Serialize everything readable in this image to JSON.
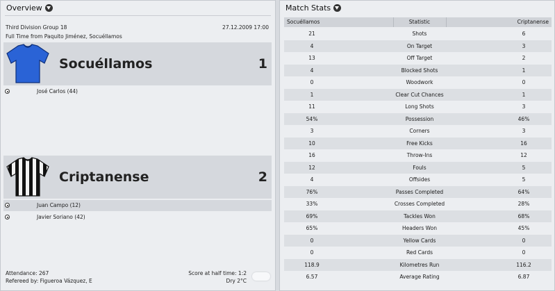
{
  "overview": {
    "title": "Overview",
    "competition": "Third Division Group 18",
    "datetime": "27.12.2009 17:00",
    "result_line": "Full Time from Paquito Jiménez, Socuéllamos",
    "home": {
      "name": "Socuéllamos",
      "score": "1",
      "kit_color": "#2a63d6",
      "scorers": [
        "José Carlos (44)"
      ]
    },
    "away": {
      "name": "Criptanense",
      "score": "2",
      "kit_color": "#111111",
      "scorers": [
        "Juan Campo (12)",
        "Javier Soriano (42)"
      ]
    },
    "attendance": "Attendance: 267",
    "referee": "Refereed by: Figueroa Vázquez, E",
    "halftime": "Score at half time: 1:2",
    "weather": "Dry 2°C"
  },
  "match_stats": {
    "title": "Match Stats",
    "headers": {
      "home": "Socuéllamos",
      "stat": "Statistic",
      "away": "Criptanense"
    },
    "rows": [
      {
        "home": "21",
        "stat": "Shots",
        "away": "6"
      },
      {
        "home": "4",
        "stat": "On Target",
        "away": "3"
      },
      {
        "home": "13",
        "stat": "Off Target",
        "away": "2"
      },
      {
        "home": "4",
        "stat": "Blocked Shots",
        "away": "1"
      },
      {
        "home": "0",
        "stat": "Woodwork",
        "away": "0"
      },
      {
        "home": "1",
        "stat": "Clear Cut Chances",
        "away": "1"
      },
      {
        "home": "11",
        "stat": "Long Shots",
        "away": "3"
      },
      {
        "home": "54%",
        "stat": "Possession",
        "away": "46%"
      },
      {
        "home": "3",
        "stat": "Corners",
        "away": "3"
      },
      {
        "home": "10",
        "stat": "Free Kicks",
        "away": "16"
      },
      {
        "home": "16",
        "stat": "Throw-Ins",
        "away": "12"
      },
      {
        "home": "12",
        "stat": "Fouls",
        "away": "5"
      },
      {
        "home": "4",
        "stat": "Offsides",
        "away": "5"
      },
      {
        "home": "76%",
        "stat": "Passes Completed",
        "away": "64%"
      },
      {
        "home": "33%",
        "stat": "Crosses Completed",
        "away": "28%"
      },
      {
        "home": "69%",
        "stat": "Tackles Won",
        "away": "68%"
      },
      {
        "home": "65%",
        "stat": "Headers Won",
        "away": "45%"
      },
      {
        "home": "0",
        "stat": "Yellow Cards",
        "away": "0"
      },
      {
        "home": "0",
        "stat": "Red Cards",
        "away": "0"
      },
      {
        "home": "118.9",
        "stat": "Kilometres Run",
        "away": "116.2"
      },
      {
        "home": "6.57",
        "stat": "Average Rating",
        "away": "6.87"
      }
    ]
  }
}
